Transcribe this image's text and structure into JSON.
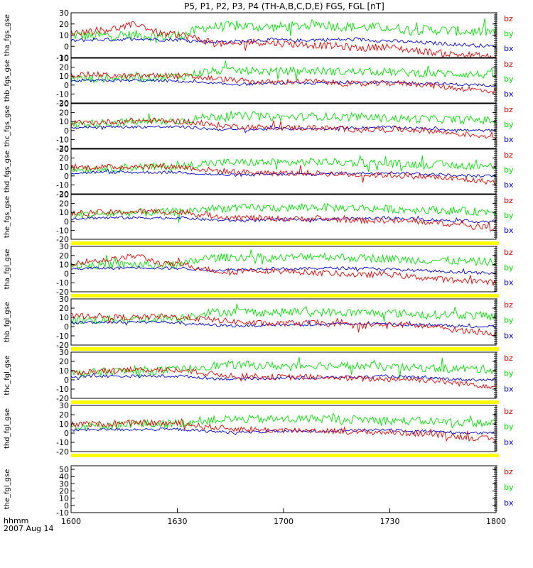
{
  "title": "P5, P1, P2, P3, P4 (TH-A,B,C,D,E) FGS, FGL [nT]",
  "footer": {
    "time_label": "hhmm",
    "date_label": "2007 Aug 14"
  },
  "colors": {
    "bz": "#e00000",
    "by": "#00e000",
    "bx": "#0000d0",
    "bar": "#ffff00",
    "axis": "#000000"
  },
  "chart_data": {
    "type": "line",
    "title": "P5, P1, P2, P3, P4 (TH-A,B,C,D,E) FGS, FGL [nT]",
    "xlabel": "hhmm",
    "x_date": "2007 Aug 14",
    "xlim": [
      "1600",
      "1800"
    ],
    "x_ticks": [
      "1600",
      "1630",
      "1700",
      "1730",
      "1800"
    ],
    "grid": false,
    "legend_entries": [
      "bz",
      "by",
      "bx"
    ],
    "legend_placement": "right of each panel",
    "panels": [
      {
        "ylabel": "tha_fgs_gse",
        "ylim": [
          -10,
          30
        ],
        "y_ticks": [
          30,
          20,
          10,
          0,
          -10
        ],
        "bar_below": false,
        "series_level": {
          "bz": [
            12,
            14,
            16,
            20,
            11,
            10,
            5,
            1,
            4,
            3,
            2,
            1,
            0,
            -2,
            0,
            -3,
            -5,
            -7,
            -8,
            -10
          ],
          "by": [
            10,
            9,
            10,
            10,
            9,
            10,
            17,
            18,
            18,
            17,
            18,
            20,
            18,
            17,
            17,
            15,
            15,
            14,
            13,
            13
          ],
          "bx": [
            5,
            6,
            6,
            7,
            6,
            6,
            4,
            4,
            5,
            6,
            5,
            6,
            6,
            6,
            5,
            4,
            3,
            2,
            1,
            0
          ]
        }
      },
      {
        "ylabel": "thb_fgs_gse",
        "ylim": [
          -20,
          30
        ],
        "y_ticks": [
          30,
          20,
          10,
          0,
          -10,
          -20
        ],
        "bar_below": false,
        "series_level": {
          "bz": [
            11,
            12,
            10,
            10,
            11,
            10,
            8,
            6,
            4,
            3,
            4,
            4,
            2,
            1,
            2,
            2,
            0,
            -3,
            -5,
            -7
          ],
          "by": [
            7,
            7,
            8,
            8,
            9,
            10,
            15,
            16,
            16,
            15,
            16,
            16,
            15,
            15,
            15,
            14,
            13,
            13,
            12,
            11
          ],
          "bx": [
            4,
            5,
            5,
            5,
            5,
            4,
            2,
            1,
            1,
            2,
            2,
            2,
            3,
            3,
            3,
            2,
            2,
            1,
            0,
            0
          ]
        }
      },
      {
        "ylabel": "thc_fgs_gse",
        "ylim": [
          -20,
          30
        ],
        "y_ticks": [
          30,
          20,
          10,
          0,
          -10,
          -20
        ],
        "bar_below": false,
        "series_level": {
          "bz": [
            8,
            9,
            10,
            11,
            11,
            10,
            7,
            5,
            4,
            3,
            3,
            3,
            2,
            1,
            1,
            1,
            0,
            -3,
            -5,
            -7
          ],
          "by": [
            6,
            8,
            9,
            10,
            10,
            11,
            15,
            16,
            16,
            15,
            15,
            16,
            15,
            15,
            14,
            13,
            13,
            12,
            12,
            11
          ],
          "bx": [
            3,
            4,
            4,
            4,
            4,
            4,
            2,
            1,
            1,
            2,
            2,
            2,
            3,
            3,
            4,
            3,
            2,
            1,
            0,
            0
          ]
        }
      },
      {
        "ylabel": "thd_fgs_gse",
        "ylim": [
          -20,
          30
        ],
        "y_ticks": [
          30,
          20,
          10,
          0,
          -10,
          -20
        ],
        "bar_below": false,
        "series_level": {
          "bz": [
            9,
            10,
            10,
            11,
            11,
            10,
            7,
            5,
            4,
            3,
            3,
            3,
            2,
            1,
            1,
            0,
            -1,
            -3,
            -5,
            -7
          ],
          "by": [
            7,
            8,
            9,
            10,
            10,
            11,
            14,
            15,
            15,
            15,
            15,
            16,
            15,
            15,
            14,
            13,
            13,
            12,
            11,
            11
          ],
          "bx": [
            3,
            4,
            4,
            4,
            4,
            4,
            2,
            1,
            1,
            2,
            2,
            2,
            3,
            3,
            4,
            3,
            2,
            1,
            0,
            0
          ]
        }
      },
      {
        "ylabel": "the_fgs_gse",
        "ylim": [
          -20,
          30
        ],
        "y_ticks": [
          30,
          20,
          10,
          0,
          -10,
          -20
        ],
        "bar_below": true,
        "series_level": {
          "bz": [
            9,
            10,
            10,
            11,
            11,
            10,
            7,
            5,
            4,
            3,
            3,
            3,
            2,
            1,
            1,
            0,
            -1,
            -3,
            -5,
            -7
          ],
          "by": [
            7,
            8,
            9,
            10,
            10,
            11,
            14,
            15,
            15,
            15,
            15,
            16,
            15,
            15,
            14,
            13,
            13,
            12,
            11,
            11
          ],
          "bx": [
            3,
            4,
            4,
            4,
            4,
            4,
            2,
            1,
            1,
            2,
            2,
            2,
            3,
            3,
            4,
            3,
            2,
            1,
            0,
            0
          ]
        }
      },
      {
        "ylabel": "tha_fgl_gse",
        "ylim": [
          -20,
          30
        ],
        "y_ticks": [
          30,
          20,
          10,
          0,
          -10,
          -20
        ],
        "bar_below": true,
        "series_level": {
          "bz": [
            12,
            14,
            16,
            20,
            11,
            10,
            5,
            1,
            4,
            3,
            2,
            1,
            0,
            -2,
            0,
            -3,
            -5,
            -7,
            -8,
            -10
          ],
          "by": [
            10,
            9,
            10,
            10,
            9,
            10,
            17,
            18,
            18,
            17,
            18,
            20,
            18,
            17,
            17,
            15,
            15,
            14,
            13,
            13
          ],
          "bx": [
            5,
            6,
            6,
            7,
            6,
            6,
            4,
            4,
            5,
            6,
            5,
            6,
            6,
            6,
            5,
            4,
            3,
            2,
            1,
            0
          ]
        }
      },
      {
        "ylabel": "thb_fgl_gse",
        "ylim": [
          -20,
          30
        ],
        "y_ticks": [
          30,
          20,
          10,
          0,
          -10,
          -20
        ],
        "bar_below": true,
        "series_level": {
          "bz": [
            11,
            12,
            10,
            10,
            11,
            10,
            8,
            6,
            4,
            3,
            4,
            4,
            2,
            1,
            2,
            2,
            0,
            -3,
            -5,
            -7
          ],
          "by": [
            7,
            7,
            8,
            8,
            9,
            10,
            15,
            16,
            16,
            15,
            16,
            16,
            15,
            15,
            15,
            14,
            13,
            13,
            12,
            11
          ],
          "bx": [
            4,
            5,
            5,
            5,
            5,
            4,
            2,
            1,
            1,
            2,
            2,
            2,
            3,
            3,
            3,
            2,
            2,
            1,
            0,
            0
          ]
        }
      },
      {
        "ylabel": "thc_fgl_gse",
        "ylim": [
          -20,
          30
        ],
        "y_ticks": [
          30,
          20,
          10,
          0,
          -10,
          -20
        ],
        "bar_below": true,
        "series_level": {
          "bz": [
            8,
            9,
            10,
            11,
            11,
            10,
            7,
            5,
            4,
            3,
            3,
            3,
            2,
            1,
            1,
            1,
            0,
            -3,
            -5,
            -7
          ],
          "by": [
            6,
            8,
            9,
            10,
            10,
            11,
            15,
            16,
            16,
            15,
            15,
            16,
            15,
            15,
            14,
            13,
            13,
            12,
            12,
            11
          ],
          "bx": [
            3,
            4,
            4,
            4,
            4,
            4,
            2,
            1,
            1,
            2,
            2,
            2,
            3,
            3,
            4,
            3,
            2,
            1,
            0,
            0
          ]
        }
      },
      {
        "ylabel": "thd_fgl_gse",
        "ylim": [
          -20,
          30
        ],
        "y_ticks": [
          30,
          20,
          10,
          0,
          -10,
          -20
        ],
        "bar_below": true,
        "series_level": {
          "bz": [
            9,
            10,
            10,
            11,
            11,
            10,
            7,
            5,
            4,
            3,
            3,
            3,
            2,
            1,
            1,
            0,
            -1,
            -3,
            -5,
            -7
          ],
          "by": [
            7,
            8,
            9,
            10,
            10,
            11,
            14,
            15,
            15,
            15,
            15,
            16,
            15,
            15,
            14,
            13,
            13,
            12,
            11,
            11
          ],
          "bx": [
            3,
            4,
            4,
            4,
            4,
            4,
            2,
            1,
            1,
            2,
            2,
            2,
            3,
            3,
            4,
            3,
            2,
            1,
            0,
            0
          ]
        }
      },
      {
        "ylabel": "the_fgl_gse",
        "ylim": [
          -10,
          55
        ],
        "y_ticks": [
          50,
          40,
          30,
          20,
          10,
          0,
          -10
        ],
        "bar_below": false,
        "series_level": null
      }
    ]
  }
}
